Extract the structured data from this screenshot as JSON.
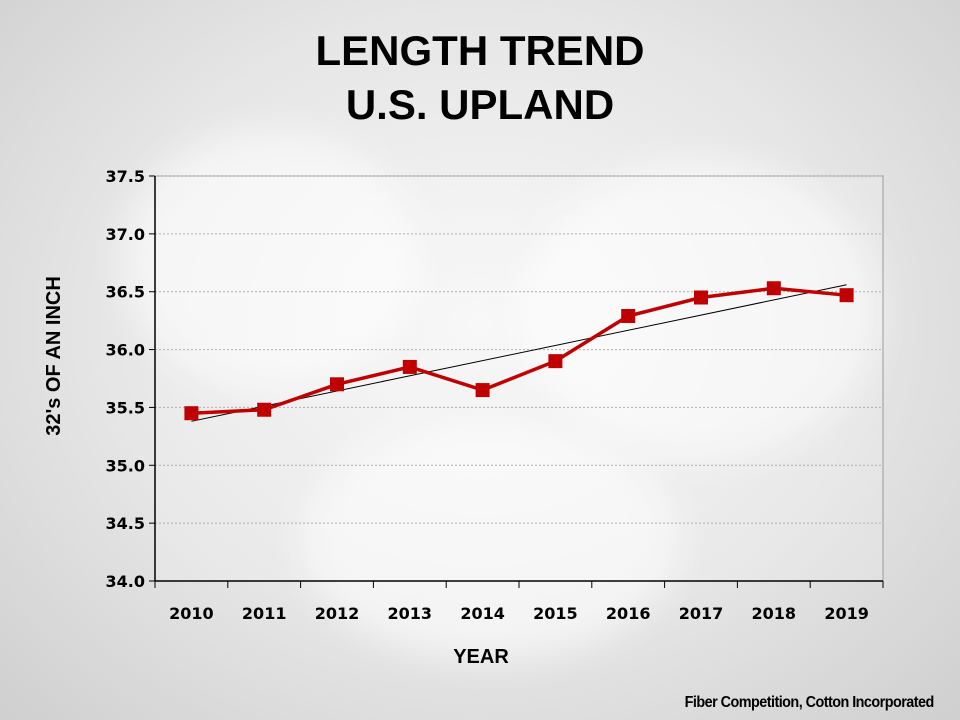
{
  "title_line1": "LENGTH TREND",
  "title_line2": "U.S. UPLAND",
  "credit": "Fiber Competition, Cotton Incorporated",
  "chart_data": {
    "type": "line",
    "ylabel": "32's OF AN INCH",
    "xlabel": "YEAR",
    "categories": [
      "2010",
      "2011",
      "2012",
      "2013",
      "2014",
      "2015",
      "2016",
      "2017",
      "2018",
      "2019"
    ],
    "series": [
      {
        "values": [
          35.45,
          35.48,
          35.7,
          35.85,
          35.65,
          35.9,
          36.29,
          36.45,
          36.53,
          36.47
        ],
        "color": "#c00000"
      }
    ],
    "trendline": {
      "start": 35.38,
      "end": 36.56,
      "color": "#000000"
    },
    "ylim": [
      34.0,
      37.5
    ],
    "yticks": [
      "34.0",
      "34.5",
      "35.0",
      "35.5",
      "36.0",
      "36.5",
      "37.0",
      "37.5"
    ],
    "grid": true,
    "legend": "none"
  }
}
